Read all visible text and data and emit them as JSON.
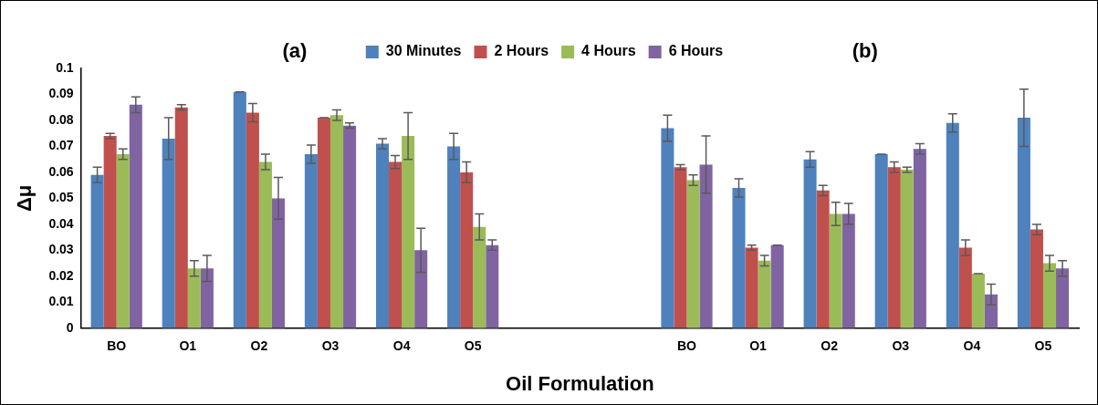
{
  "chart_data": {
    "type": "bar",
    "annotations": [
      "(a)",
      "(b)"
    ],
    "xlabel": "Oil Formulation",
    "ylabel": "Δμ",
    "categories": [
      "BO",
      "O1",
      "O2",
      "O3",
      "O4",
      "O5",
      null,
      null,
      "BO",
      "O1",
      "O2",
      "O3",
      "O4",
      "O5"
    ],
    "series": [
      {
        "name": "30 Minutes",
        "color": "#4f81bd",
        "values": [
          0.059,
          0.073,
          0.091,
          0.067,
          0.071,
          0.07,
          null,
          null,
          0.077,
          0.054,
          0.065,
          0.067,
          0.079,
          0.081
        ],
        "errors": [
          0.003,
          0.008,
          0,
          0.0035,
          0.002,
          0.005,
          null,
          null,
          0.005,
          0.0035,
          0.003,
          0,
          0.0035,
          0.011
        ]
      },
      {
        "name": "2 Hours",
        "color": "#c0504d",
        "values": [
          0.074,
          0.085,
          0.083,
          0.081,
          0.064,
          0.06,
          null,
          null,
          0.062,
          0.031,
          0.053,
          0.062,
          0.031,
          0.038
        ],
        "errors": [
          0.001,
          0.001,
          0.0035,
          0,
          0.0025,
          0.004,
          null,
          null,
          0.001,
          0.001,
          0.002,
          0.002,
          0.003,
          0.002
        ]
      },
      {
        "name": "4 Hours",
        "color": "#9bbb59",
        "values": [
          0.067,
          0.023,
          0.064,
          0.082,
          0.074,
          0.039,
          null,
          null,
          0.057,
          0.026,
          0.044,
          0.061,
          0.021,
          0.025
        ],
        "errors": [
          0.002,
          0.003,
          0.003,
          0.002,
          0.009,
          0.005,
          null,
          null,
          0.002,
          0.002,
          0.0045,
          0.001,
          0,
          0.003
        ]
      },
      {
        "name": "6 Hours",
        "color": "#8064a2",
        "values": [
          0.086,
          0.023,
          0.05,
          0.078,
          0.03,
          0.032,
          null,
          null,
          0.063,
          0.032,
          0.044,
          0.069,
          0.013,
          0.023
        ],
        "errors": [
          0.003,
          0.005,
          0.008,
          0.001,
          0.0085,
          0.002,
          null,
          null,
          0.011,
          0,
          0.004,
          0.002,
          0.004,
          0.003
        ]
      }
    ],
    "ylim": [
      0,
      0.1
    ],
    "yticks": [
      0,
      0.01,
      0.02,
      0.03,
      0.04,
      0.05,
      0.06,
      0.07,
      0.08,
      0.09,
      0.1
    ],
    "legend": "top"
  }
}
